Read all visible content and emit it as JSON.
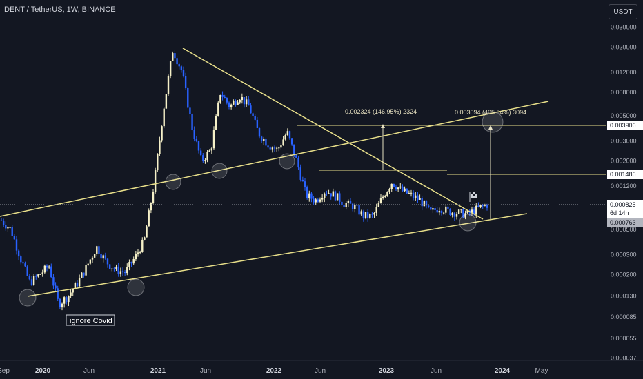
{
  "header": {
    "symbol": "DENT / TetherUS, 1W, BINANCE",
    "currency_button": "USDT"
  },
  "chart_data": {
    "type": "candlestick",
    "title": "DENT / TetherUS, 1W, BINANCE",
    "y_scale": "log",
    "y_ticks": [
      "0.030000",
      "0.020000",
      "0.012000",
      "0.008000",
      "0.005000",
      "0.003000",
      "0.002000",
      "0.001200",
      "0.000500",
      "0.000300",
      "0.000200",
      "0.000130",
      "0.000085",
      "0.000055",
      "0.000037"
    ],
    "x_ticks": [
      "Sep",
      "2020",
      "Jun",
      "2021",
      "Jun",
      "2022",
      "Jun",
      "2023",
      "Jun",
      "2024",
      "May"
    ],
    "x_ticks_bold": [
      "2020",
      "2021",
      "2022",
      "2023",
      "2024"
    ],
    "price_labels": [
      {
        "value": "0.003906",
        "style": "white"
      },
      {
        "value": "0.001486",
        "style": "white"
      },
      {
        "value": "0.000825",
        "style": "white"
      },
      {
        "value": "6d 14h",
        "style": "white"
      },
      {
        "value": "0.000763",
        "style": "gray"
      }
    ],
    "current_price": 0.000825,
    "annotations": [
      "0.002324 (146.95%) 2324",
      "0.003094 (405.34%) 3094",
      "ignore Covid"
    ],
    "price_path": [
      {
        "date": "2019-09",
        "price": 0.0006
      },
      {
        "date": "2019-10",
        "price": 0.0005
      },
      {
        "date": "2019-11",
        "price": 0.00028
      },
      {
        "date": "2019-12",
        "price": 0.00017
      },
      {
        "date": "2020-01",
        "price": 0.0002
      },
      {
        "date": "2020-02",
        "price": 0.00024
      },
      {
        "date": "2020-03",
        "price": 0.00011
      },
      {
        "date": "2020-04",
        "price": 0.00013
      },
      {
        "date": "2020-05",
        "price": 0.00017
      },
      {
        "date": "2020-06",
        "price": 0.00024
      },
      {
        "date": "2020-07",
        "price": 0.00035
      },
      {
        "date": "2020-08",
        "price": 0.00026
      },
      {
        "date": "2020-09",
        "price": 0.00022
      },
      {
        "date": "2020-10",
        "price": 0.00021
      },
      {
        "date": "2020-11",
        "price": 0.00028
      },
      {
        "date": "2020-12",
        "price": 0.0004
      },
      {
        "date": "2021-01",
        "price": 0.0012
      },
      {
        "date": "2021-02",
        "price": 0.0055
      },
      {
        "date": "2021-03",
        "price": 0.019
      },
      {
        "date": "2021-04",
        "price": 0.012
      },
      {
        "date": "2021-05",
        "price": 0.004
      },
      {
        "date": "2021-06",
        "price": 0.002
      },
      {
        "date": "2021-07",
        "price": 0.0025
      },
      {
        "date": "2021-08",
        "price": 0.008
      },
      {
        "date": "2021-09",
        "price": 0.006
      },
      {
        "date": "2021-10",
        "price": 0.0075
      },
      {
        "date": "2021-11",
        "price": 0.006
      },
      {
        "date": "2021-12",
        "price": 0.0035
      },
      {
        "date": "2022-01",
        "price": 0.0028
      },
      {
        "date": "2022-02",
        "price": 0.0025
      },
      {
        "date": "2022-03",
        "price": 0.0036
      },
      {
        "date": "2022-04",
        "price": 0.002
      },
      {
        "date": "2022-05",
        "price": 0.001
      },
      {
        "date": "2022-06",
        "price": 0.0009
      },
      {
        "date": "2022-07",
        "price": 0.0011
      },
      {
        "date": "2022-08",
        "price": 0.001
      },
      {
        "date": "2022-09",
        "price": 0.00085
      },
      {
        "date": "2022-10",
        "price": 0.0008
      },
      {
        "date": "2022-11",
        "price": 0.00066
      },
      {
        "date": "2022-12",
        "price": 0.00065
      },
      {
        "date": "2023-01",
        "price": 0.00095
      },
      {
        "date": "2023-02",
        "price": 0.0013
      },
      {
        "date": "2023-03",
        "price": 0.0011
      },
      {
        "date": "2023-04",
        "price": 0.001
      },
      {
        "date": "2023-05",
        "price": 0.0009
      },
      {
        "date": "2023-06",
        "price": 0.0007
      },
      {
        "date": "2023-07",
        "price": 0.00078
      },
      {
        "date": "2023-08",
        "price": 0.00072
      },
      {
        "date": "2023-09",
        "price": 0.0007
      },
      {
        "date": "2023-10",
        "price": 0.00068
      },
      {
        "date": "2023-11",
        "price": 0.00076
      },
      {
        "date": "2023-12",
        "price": 0.000825
      }
    ]
  },
  "colors": {
    "background": "#131722",
    "up_candle": "#f5f0c8",
    "down_candle": "#2962ff",
    "trendline": "#e8df8a",
    "grid": "#1e222d",
    "axis_text": "#b2b5be"
  }
}
